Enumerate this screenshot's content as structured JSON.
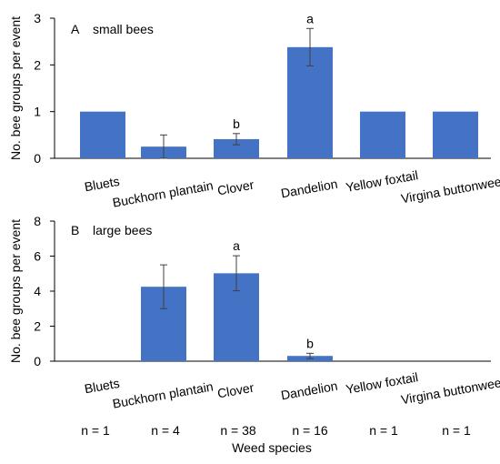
{
  "x_title": "Weed species",
  "n_labels": [
    "n = 1",
    "n = 4",
    "n = 38",
    "n = 16",
    "n = 1",
    "n = 1"
  ],
  "chart_data": [
    {
      "type": "bar",
      "panel_letter": "A",
      "panel_title": "small bees",
      "ylabel": "No. bee groups per event",
      "ylim": [
        0,
        3
      ],
      "yticks": [
        0,
        1,
        2,
        3
      ],
      "categories": [
        "Bluets",
        "Buckhorn plantain",
        "Clover",
        "Dandelion",
        "Yellow foxtail",
        "Virgina buttonweed"
      ],
      "values": [
        1.0,
        0.25,
        0.41,
        2.38,
        1.0,
        1.0
      ],
      "errors": [
        0,
        0.25,
        0.12,
        0.4,
        0,
        0
      ],
      "letters": [
        "",
        "",
        "b",
        "a",
        "",
        ""
      ],
      "color": "#4472c4",
      "grid": false
    },
    {
      "type": "bar",
      "panel_letter": "B",
      "panel_title": "large bees",
      "ylabel": "No. bee groups per event",
      "ylim": [
        0,
        8
      ],
      "yticks": [
        0,
        2,
        4,
        6,
        8
      ],
      "categories": [
        "Bluets",
        "Buckhorn plantain",
        "Clover",
        "Dandelion",
        "Yellow foxtail",
        "Virgina buttonweed"
      ],
      "values": [
        0,
        4.25,
        5.02,
        0.3,
        0,
        0
      ],
      "errors": [
        0,
        1.25,
        1.0,
        0.15,
        0,
        0
      ],
      "letters": [
        "",
        "",
        "a",
        "b",
        "",
        ""
      ],
      "color": "#4472c4",
      "grid": false
    }
  ]
}
